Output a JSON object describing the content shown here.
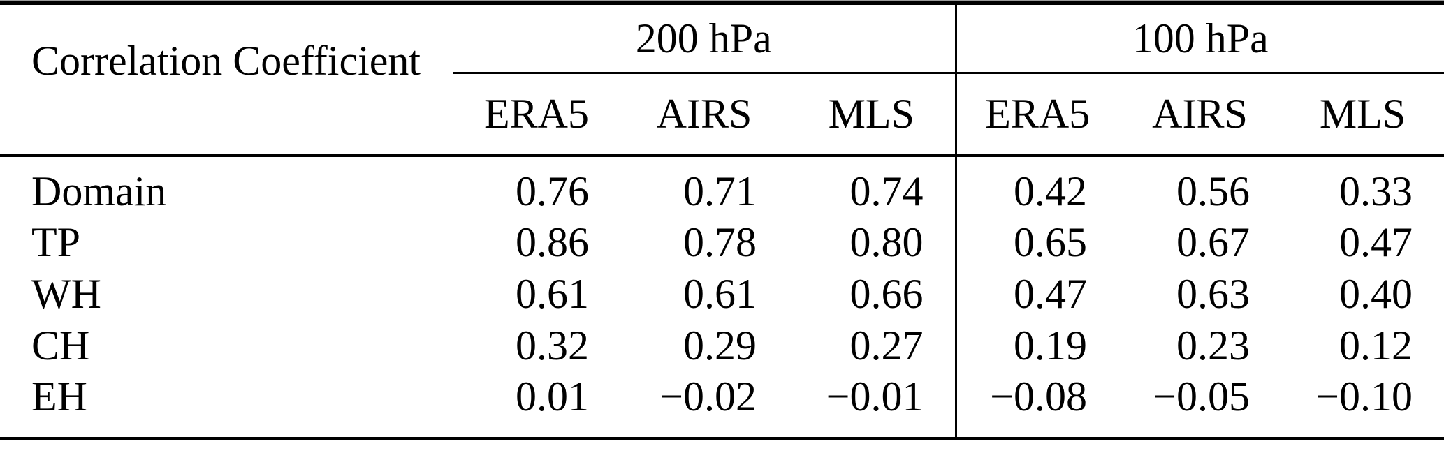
{
  "chart_data": {
    "type": "table",
    "title": "Correlation Coefficient",
    "column_groups": [
      {
        "label": "200 hPa",
        "columns": [
          "ERA5",
          "AIRS",
          "MLS"
        ]
      },
      {
        "label": "100 hPa",
        "columns": [
          "ERA5",
          "AIRS",
          "MLS"
        ]
      }
    ],
    "rows": [
      {
        "label": "Domain",
        "values": [
          "0.76",
          "0.71",
          "0.74",
          "0.42",
          "0.56",
          "0.33"
        ]
      },
      {
        "label": "TP",
        "values": [
          "0.86",
          "0.78",
          "0.80",
          "0.65",
          "0.67",
          "0.47"
        ]
      },
      {
        "label": "WH",
        "values": [
          "0.61",
          "0.61",
          "0.66",
          "0.47",
          "0.63",
          "0.40"
        ]
      },
      {
        "label": "CH",
        "values": [
          "0.32",
          "0.29",
          "0.27",
          "0.19",
          "0.23",
          "0.12"
        ]
      },
      {
        "label": "EH",
        "values": [
          "0.01",
          "−0.02",
          "−0.01",
          "−0.08",
          "−0.05",
          "−0.10"
        ]
      }
    ]
  },
  "colors": {
    "text": "#000000",
    "rules": "#000000",
    "background": "#ffffff"
  }
}
